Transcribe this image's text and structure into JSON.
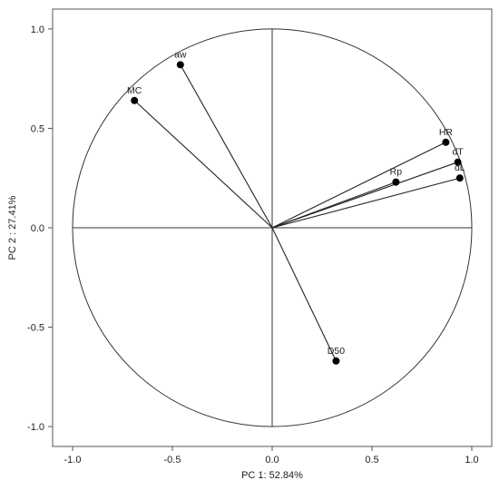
{
  "chart_data": {
    "type": "scatter",
    "subtype": "pca-correlation-circle",
    "title": "",
    "xlabel": "PC 1: 52.84%",
    "ylabel": "PC 2 :  27.41%",
    "xlim": [
      -1.1,
      1.1
    ],
    "ylim": [
      -1.1,
      1.1
    ],
    "xticks": [
      "-1.0",
      "-0.5",
      "0.0",
      "0.5",
      "1.0"
    ],
    "yticks": [
      "1.0",
      "0.5",
      "0.0",
      "-0.5",
      "-1.0"
    ],
    "grid": false,
    "unit_circle": true,
    "center_lines": true,
    "vectors_from_origin": true,
    "point_color": "#000000",
    "line_color": "#222222",
    "points": [
      {
        "label": "aw",
        "x": -0.46,
        "y": 0.82
      },
      {
        "label": "MC",
        "x": -0.69,
        "y": 0.64
      },
      {
        "label": "HR",
        "x": 0.87,
        "y": 0.43
      },
      {
        "label": "dT",
        "x": 0.93,
        "y": 0.33
      },
      {
        "label": "dL",
        "x": 0.94,
        "y": 0.25
      },
      {
        "label": "Rp",
        "x": 0.62,
        "y": 0.23
      },
      {
        "label": "D50",
        "x": 0.32,
        "y": -0.67
      }
    ]
  }
}
